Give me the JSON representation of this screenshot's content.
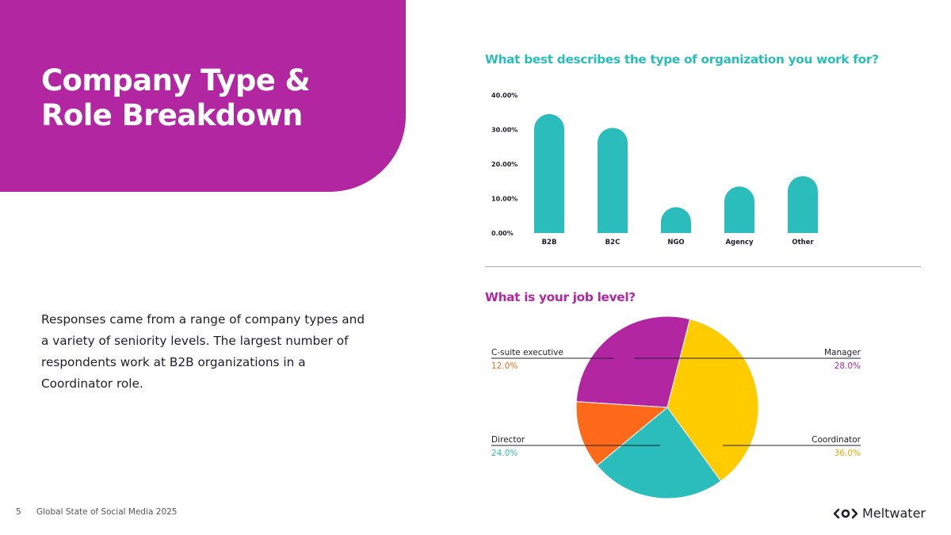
{
  "slide": {
    "title_line1": "Company Type &",
    "title_line2": "Role Breakdown",
    "body": "Responses came from a range of company types and a variety of seniority levels. The largest number of respondents work at B2B organizations in a Coordinator role.",
    "page_number": "5",
    "publication": "Global State of Social Media 2025",
    "brand": "Meltwater"
  },
  "colors": {
    "title_bg": "#b227a1",
    "teal": "#2bbcbc",
    "magenta": "#b227a1",
    "orange": "#ff6a1a",
    "yellow": "#ffcc00",
    "bar_question": "#2bbcbc",
    "pie_question": "#b227a1"
  },
  "chart_data": [
    {
      "type": "bar",
      "title": "What best describes the type of organization you work for?",
      "categories": [
        "B2B",
        "B2C",
        "NGO",
        "Agency",
        "Other"
      ],
      "values": [
        34.5,
        30.5,
        7.5,
        13.5,
        16.5
      ],
      "ylim": [
        0,
        40
      ],
      "yticks": [
        0,
        10,
        20,
        30,
        40
      ],
      "ytick_labels": [
        "0.00%",
        "10.00%",
        "20.00%",
        "30.00%",
        "40.00%"
      ],
      "grid": false,
      "color": "#2bbcbc"
    },
    {
      "type": "pie",
      "title": "What is your job level?",
      "slices": [
        {
          "label": "Manager",
          "value": 28.0,
          "display": "28.0%",
          "color": "#b227a1"
        },
        {
          "label": "Coordinator",
          "value": 36.0,
          "display": "36.0%",
          "color": "#ffcc00"
        },
        {
          "label": "Director",
          "value": 24.0,
          "display": "24.0%",
          "color": "#2bbcbc"
        },
        {
          "label": "C-suite executive",
          "value": 12.0,
          "display": "12.0%",
          "color": "#ff6a1a"
        }
      ]
    }
  ]
}
